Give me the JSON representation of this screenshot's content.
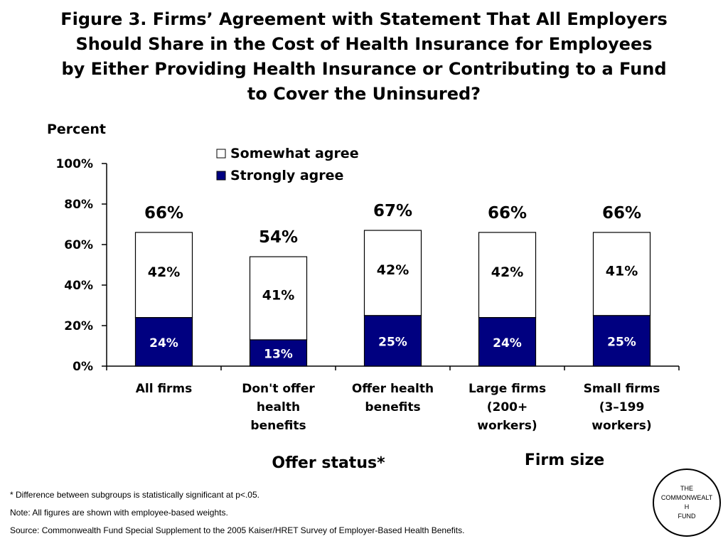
{
  "title_lines": [
    "Figure 3. Firms’ Agreement with Statement That All Employers",
    "Should Share in the Cost of Health Insurance for Employees",
    "by Either Providing Health Insurance or Contributing to a Fund",
    "to Cover the Uninsured?"
  ],
  "chart_data": {
    "type": "bar",
    "stacked": true,
    "title": "Figure 3. Firms’ Agreement with Statement That All Employers Should Share in the Cost of Health Insurance for Employees by Either Providing Health Insurance or Contributing to a Fund to Cover the Uninsured?",
    "ylabel": "Percent",
    "ylim": [
      0,
      100
    ],
    "yticks": [
      "0%",
      "20%",
      "40%",
      "60%",
      "80%",
      "100%"
    ],
    "categories": [
      [
        "All firms"
      ],
      [
        "Don't offer",
        "health",
        "benefits"
      ],
      [
        "Offer health",
        "benefits"
      ],
      [
        "Large firms",
        "(200+",
        "workers)"
      ],
      [
        "Small firms",
        "(3–199",
        "workers)"
      ]
    ],
    "series": [
      {
        "name": "Strongly agree",
        "color": "#000080",
        "values": [
          24,
          13,
          25,
          24,
          25
        ],
        "labels": [
          "24%",
          "13%",
          "25%",
          "24%",
          "25%"
        ]
      },
      {
        "name": "Somewhat agree",
        "color": "#ffffff",
        "values": [
          42,
          41,
          42,
          42,
          41
        ],
        "labels": [
          "42%",
          "41%",
          "42%",
          "42%",
          "41%"
        ]
      }
    ],
    "totals": [
      "66%",
      "54%",
      "67%",
      "66%",
      "66%"
    ],
    "legend_order": [
      "Somewhat agree",
      "Strongly agree"
    ],
    "legend_position": "top-center",
    "group_labels": [
      "Offer status*",
      "Firm size"
    ],
    "grid": false
  },
  "footnotes": [
    "* Difference between subgroups is statistically significant at p<.05.",
    "Note: All figures are shown with employee-based weights.",
    "Source: Commonwealth Fund Special Supplement to the 2005 Kaiser/HRET Survey of Employer-Based Health Benefits."
  ],
  "logo_lines": [
    "THE",
    "COMMONWEALT",
    "H",
    "FUND"
  ]
}
